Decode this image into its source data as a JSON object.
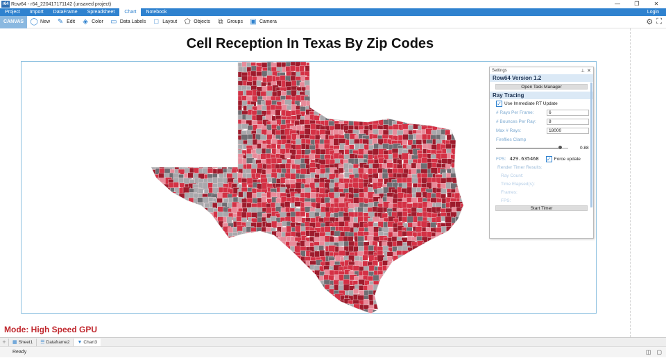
{
  "window": {
    "title": "Row64 - r64_220417171142 (unsaved project)",
    "logo": "r64"
  },
  "menu": {
    "items": [
      "Project",
      "Import",
      "DataFrame",
      "Spreadsheet",
      "Chart",
      "Notebook"
    ],
    "active": "Chart",
    "login": "Login"
  },
  "toolbar": {
    "canvas_label": "CANVAS",
    "tools": [
      {
        "label": "New",
        "icon": "globe-icon"
      },
      {
        "label": "Edit",
        "icon": "pencil-icon"
      },
      {
        "label": "Color",
        "icon": "paint-bucket-icon"
      },
      {
        "label": "Data Labels",
        "icon": "tag-icon"
      },
      {
        "label": "Layout",
        "icon": "layout-icon"
      },
      {
        "label": "Objects",
        "icon": "shapes-icon"
      },
      {
        "label": "Groups",
        "icon": "groups-icon"
      },
      {
        "label": "Camera",
        "icon": "camera-icon"
      }
    ]
  },
  "chart": {
    "title": "Cell Reception In Texas By Zip Codes",
    "colors": {
      "dark_red": "#9e1b2c",
      "red": "#d43145",
      "pink": "#e88a99",
      "grey": "#a8a8ac",
      "dark_grey": "#6d6d72"
    }
  },
  "mode_label": "Mode: High Speed GPU",
  "settings": {
    "header": "Settings",
    "version": "Row64 Version 1.2",
    "task_manager_button": "Open Task Manager",
    "ray_tracing_title": "Ray Tracing",
    "immediate_update_label": "Use Immediate RT Update",
    "immediate_update_checked": true,
    "rays_per_frame_label": "# Rays Per Frame:",
    "rays_per_frame_value": "6",
    "bounces_label": "# Bounces Per Ray:",
    "bounces_value": "8",
    "max_rays_label": "Max # Rays:",
    "max_rays_value": "18000",
    "fireflies_label": "Fireflies Clamp",
    "fireflies_value": "0.88",
    "fps_label": "FPS:",
    "fps_value": "429.635468",
    "force_update_label": "Force update",
    "force_update_checked": true,
    "render_timer_title": "Render Timer Results:",
    "ray_count_label": "Ray Count:",
    "time_elapsed_label": "Time Elapsed(s):",
    "frames_label": "Frames:",
    "fps_result_label": "FPS:",
    "start_timer_button": "Start Timer"
  },
  "sheets": {
    "add": "+",
    "tabs": [
      "Sheet1",
      "Dataframe2",
      "Chart3"
    ],
    "active": "Chart3"
  },
  "status": {
    "text": "Ready"
  }
}
